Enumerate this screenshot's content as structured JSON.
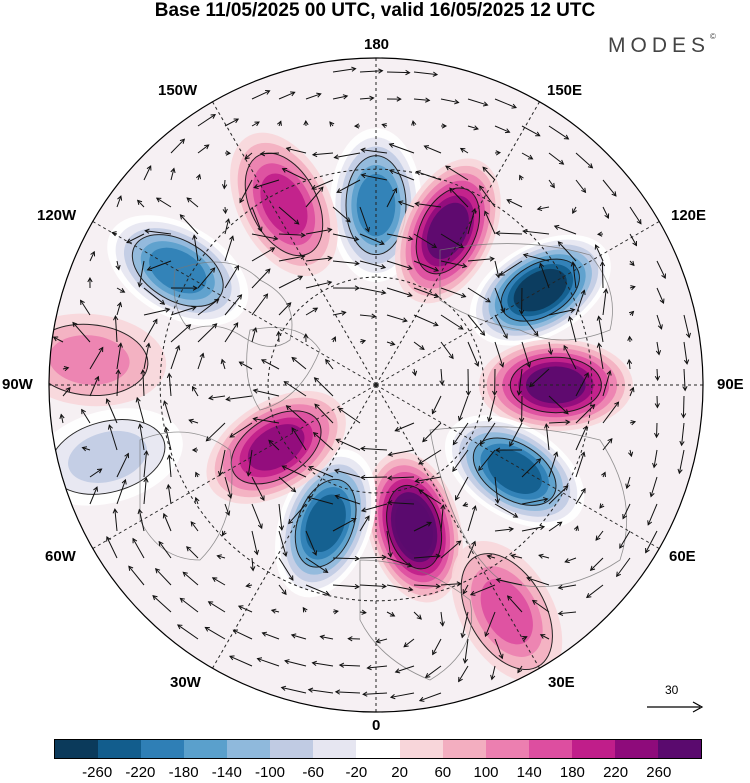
{
  "title": "Base 11/05/2025 00 UTC, valid 16/05/2025 12 UTC",
  "brand": "MODES",
  "brand_mark": "©",
  "longitudes": {
    "lon_180": "180",
    "lon_150w": "150W",
    "lon_150e": "150E",
    "lon_120w": "120W",
    "lon_120e": "120E",
    "lon_90w": "90W",
    "lon_90e": "90E",
    "lon_60w": "60W",
    "lon_60e": "60E",
    "lon_30w": "30W",
    "lon_30e": "30E",
    "lon_0": "0"
  },
  "reference_vector": {
    "label": "30",
    "icon": "arrow-right-icon"
  },
  "colorbar": {
    "colors": [
      "#0b3a5b",
      "#125d8d",
      "#2f7fb6",
      "#5aa0cc",
      "#8fb9dc",
      "#c0cbe3",
      "#e6e6f1",
      "#ffffff",
      "#f8d6da",
      "#f3aec0",
      "#ec7fb0",
      "#dd4ea0",
      "#c01e8a",
      "#8e0b7b",
      "#5a0a6e"
    ],
    "ticks": [
      "-260",
      "-220",
      "-180",
      "-140",
      "-100",
      "-60",
      "-20",
      "20",
      "60",
      "100",
      "140",
      "180",
      "220",
      "260"
    ]
  },
  "map_data": {
    "center": "North Pole",
    "projection": "polar stereographic",
    "bottom_longitude": "0",
    "anomalies": [
      {
        "lon": 180,
        "colat": 0.55,
        "value": -200
      },
      {
        "lon": 155,
        "colat": 0.52,
        "value": 220
      },
      {
        "lon": 120,
        "colat": 0.58,
        "value": -260
      },
      {
        "lon": 90,
        "colat": 0.55,
        "value": 220
      },
      {
        "lon": 58,
        "colat": 0.5,
        "value": -240
      },
      {
        "lon": 15,
        "colat": 0.45,
        "value": 260
      },
      {
        "lon": -20,
        "colat": 0.45,
        "value": -240
      },
      {
        "lon": -58,
        "colat": 0.36,
        "value": 180
      },
      {
        "lon": -120,
        "colat": 0.7,
        "value": -180
      },
      {
        "lon": -153,
        "colat": 0.62,
        "value": 160
      },
      {
        "lon": 30,
        "colat": 0.8,
        "value": 100
      },
      {
        "lon": -75,
        "colat": 0.85,
        "value": -80
      },
      {
        "lon": -95,
        "colat": 0.88,
        "value": 80
      }
    ]
  }
}
